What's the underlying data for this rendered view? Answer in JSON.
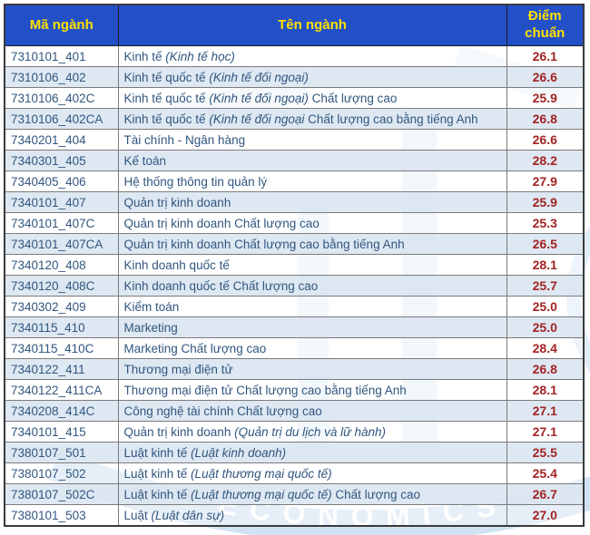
{
  "colors": {
    "header_bg": "#2350C7",
    "header_text": "#FFE000",
    "row_alt_bg": "#DCE6F1",
    "row_bg": "#FFFFFF",
    "body_text": "#31567F",
    "score_text": "#A32323",
    "grid_line": "#7B7B7B",
    "outer_border": "#3A3A3A",
    "watermark_blue": "#C9DDF0"
  },
  "watermark": {
    "text": "ECONOMICS"
  },
  "table": {
    "headers": [
      "Mã ngành",
      "Tên ngành",
      "Điểm chuẩn"
    ],
    "rows": [
      {
        "code": "7310101_401",
        "name": [
          {
            "t": "Kinh tế ",
            "i": false
          },
          {
            "t": "(Kinh tế học)",
            "i": true
          }
        ],
        "score": "26.1"
      },
      {
        "code": "7310106_402",
        "name": [
          {
            "t": "Kinh tế quốc tế ",
            "i": false
          },
          {
            "t": "(Kinh tế đối ngoại)",
            "i": true
          }
        ],
        "score": "26.6"
      },
      {
        "code": "7310106_402C",
        "name": [
          {
            "t": "Kinh tế quốc tế ",
            "i": false
          },
          {
            "t": "(Kinh tế đối ngoại)",
            "i": true
          },
          {
            "t": " Chất lượng cao",
            "i": false
          }
        ],
        "score": "25.9"
      },
      {
        "code": "7310106_402CA",
        "name": [
          {
            "t": "Kinh tế quốc tế ",
            "i": false
          },
          {
            "t": "(Kinh tế đối ngoại",
            "i": true
          },
          {
            "t": "  Chất lượng cao bằng tiếng Anh",
            "i": false
          }
        ],
        "score": "26.8"
      },
      {
        "code": "7340201_404",
        "name": [
          {
            "t": "Tài chính - Ngân hàng",
            "i": false
          }
        ],
        "score": "26.6"
      },
      {
        "code": "7340301_405",
        "name": [
          {
            "t": "Kế toán",
            "i": false
          }
        ],
        "score": "28.2"
      },
      {
        "code": "7340405_406",
        "name": [
          {
            "t": "Hệ thống thông tin quản lý",
            "i": false
          }
        ],
        "score": "27.9"
      },
      {
        "code": "7340101_407",
        "name": [
          {
            "t": "Quản trị kinh doanh",
            "i": false
          }
        ],
        "score": "25.9"
      },
      {
        "code": "7340101_407C",
        "name": [
          {
            "t": "Quản trị kinh doanh Chất lượng cao",
            "i": false
          }
        ],
        "score": "25.3"
      },
      {
        "code": "7340101_407CA",
        "name": [
          {
            "t": "Quản trị kinh doanh Chất lượng cao bằng tiếng Anh",
            "i": false
          }
        ],
        "score": "26.5"
      },
      {
        "code": "7340120_408",
        "name": [
          {
            "t": "Kinh doanh quốc tế",
            "i": false
          }
        ],
        "score": "28.1"
      },
      {
        "code": "7340120_408C",
        "name": [
          {
            "t": "Kinh doanh quốc tế Chất lượng cao",
            "i": false
          }
        ],
        "score": "25.7"
      },
      {
        "code": "7340302_409",
        "name": [
          {
            "t": "Kiểm toán",
            "i": false
          }
        ],
        "score": "25.0"
      },
      {
        "code": "7340115_410",
        "name": [
          {
            "t": "Marketing",
            "i": false
          }
        ],
        "score": "25.0"
      },
      {
        "code": "7340115_410C",
        "name": [
          {
            "t": "Marketing Chất lượng cao",
            "i": false
          }
        ],
        "score": "28.4"
      },
      {
        "code": "7340122_411",
        "name": [
          {
            "t": "Thương mại điện tử",
            "i": false
          }
        ],
        "score": "26.8"
      },
      {
        "code": "7340122_411CA",
        "name": [
          {
            "t": "Thương mại điện tử Chất lượng cao bằng tiếng Anh",
            "i": false
          }
        ],
        "score": "28.1"
      },
      {
        "code": "7340208_414C",
        "name": [
          {
            "t": "Công nghệ tài chính Chất lượng cao",
            "i": false
          }
        ],
        "score": "27.1"
      },
      {
        "code": "7340101_415",
        "name": [
          {
            "t": "Quản trị kinh doanh ",
            "i": false
          },
          {
            "t": "(Quản trị du lịch và lữ hành)",
            "i": true
          }
        ],
        "score": "27.1"
      },
      {
        "code": "7380107_501",
        "name": [
          {
            "t": "Luật kinh tế ",
            "i": false
          },
          {
            "t": "(Luật kinh doanh)",
            "i": true
          }
        ],
        "score": "25.5"
      },
      {
        "code": "7380107_502",
        "name": [
          {
            "t": "Luật kinh tế ",
            "i": false
          },
          {
            "t": "(Luật thương mại quốc tế)",
            "i": true
          }
        ],
        "score": "25.4"
      },
      {
        "code": "7380107_502C",
        "name": [
          {
            "t": "Luật kinh tế ",
            "i": false
          },
          {
            "t": "(Luật thương mại quốc tế)",
            "i": true
          },
          {
            "t": " Chất lượng cao",
            "i": false
          }
        ],
        "score": "26.7"
      },
      {
        "code": "7380101_503",
        "name": [
          {
            "t": "Luật ",
            "i": false
          },
          {
            "t": "(Luật dân sự)",
            "i": true
          }
        ],
        "score": "27.0"
      }
    ]
  }
}
